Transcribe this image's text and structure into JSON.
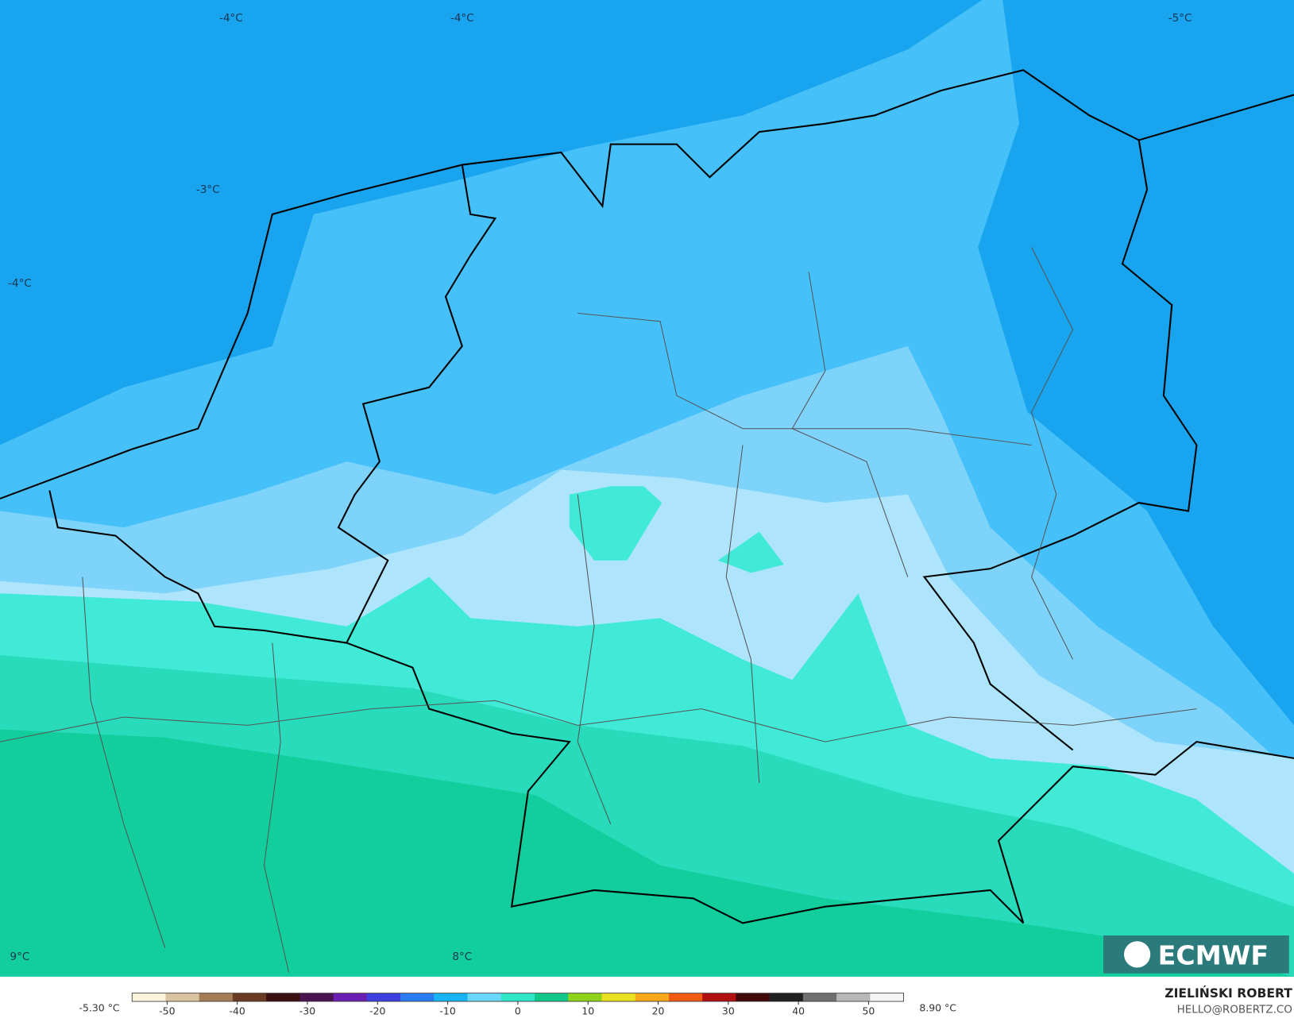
{
  "map": {
    "contour_labels": [
      "-4°C",
      "-4°C",
      "-5°C",
      "-3°C",
      "-4°C",
      "9°C",
      "8°C"
    ]
  },
  "colorbar": {
    "min_label": "-5.30 °C",
    "max_label": "8.90 °C",
    "lim": [
      -55,
      55
    ],
    "ticks": [
      -50,
      -40,
      -30,
      -20,
      -10,
      0,
      10,
      20,
      30,
      40,
      50
    ],
    "colors": [
      "#fbf3dc",
      "#d9c3a0",
      "#a57c55",
      "#6b3a22",
      "#3a0f0f",
      "#4a1450",
      "#6a1fb0",
      "#3d3fe0",
      "#2a7cf0",
      "#18b4f4",
      "#6ad8fa",
      "#30e6c8",
      "#10c88a",
      "#8ed21a",
      "#e8e020",
      "#f8a818",
      "#f05a14",
      "#b01010",
      "#400808",
      "#202020",
      "#707070",
      "#b8b8b8",
      "#f4f4f4"
    ]
  },
  "branding": {
    "logo": "ECMWF",
    "author": "ZIELIŃSKI ROBERT",
    "contact": "HELLO@ROBERTZ.CO"
  }
}
